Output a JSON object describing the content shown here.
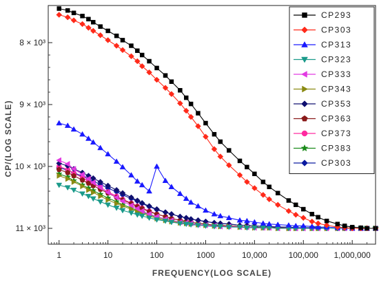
{
  "chart_data": {
    "type": "line",
    "xlabel": "FREQUENCY(LOG SCALE)",
    "ylabel": "CP/(LOG SCALE)",
    "x_scale": "log",
    "xlim": [
      0.6,
      3000000
    ],
    "y_ticks": [
      "8 × 10³",
      "9 × 10³",
      "10 × 10³",
      "11 × 10³"
    ],
    "x_ticks": [
      "1",
      "10",
      "100",
      "1000",
      "10,000",
      "100,000",
      "1,000,000"
    ],
    "legend_position": "top-right",
    "grid": false,
    "x": [
      1,
      1.5,
      2,
      3,
      4,
      5,
      7,
      10,
      15,
      20,
      30,
      40,
      50,
      70,
      100,
      150,
      200,
      300,
      400,
      500,
      700,
      1000,
      1500,
      2000,
      3000,
      5000,
      7000,
      10000,
      15000,
      20000,
      30000,
      50000,
      70000,
      100000,
      150000,
      200000,
      300000,
      500000,
      700000,
      1000000,
      1500000,
      2000000,
      3000000
    ],
    "series": [
      {
        "name": "CP293",
        "color": "#000000",
        "marker": "square",
        "values": [
          7.45,
          7.48,
          7.52,
          7.57,
          7.62,
          7.67,
          7.74,
          7.81,
          7.89,
          7.96,
          8.05,
          8.13,
          8.2,
          8.3,
          8.41,
          8.53,
          8.63,
          8.77,
          8.89,
          8.99,
          9.14,
          9.3,
          9.48,
          9.6,
          9.74,
          9.91,
          10.01,
          10.12,
          10.25,
          10.33,
          10.43,
          10.55,
          10.62,
          10.69,
          10.77,
          10.82,
          10.88,
          10.93,
          10.96,
          10.98,
          10.99,
          11.0,
          11.0
        ]
      },
      {
        "name": "CP303",
        "color": "#ff2a1a",
        "marker": "diamond",
        "values": [
          7.55,
          7.59,
          7.64,
          7.7,
          7.76,
          7.81,
          7.88,
          7.96,
          8.05,
          8.12,
          8.22,
          8.3,
          8.38,
          8.48,
          8.6,
          8.73,
          8.83,
          8.98,
          9.1,
          9.2,
          9.35,
          9.52,
          9.72,
          9.84,
          9.98,
          10.14,
          10.25,
          10.35,
          10.46,
          10.53,
          10.62,
          10.72,
          10.78,
          10.83,
          10.89,
          10.92,
          10.95,
          10.98,
          10.99,
          11.0,
          11.0,
          11.0,
          11.0
        ]
      },
      {
        "name": "CP313",
        "color": "#1a1aff",
        "marker": "triangle-up",
        "values": [
          9.3,
          9.34,
          9.4,
          9.48,
          9.55,
          9.61,
          9.7,
          9.8,
          9.92,
          10.01,
          10.14,
          10.24,
          10.3,
          10.4,
          10.0,
          10.23,
          10.33,
          10.44,
          10.52,
          10.58,
          10.64,
          10.71,
          10.77,
          10.8,
          10.83,
          10.87,
          10.88,
          10.9,
          10.92,
          10.93,
          10.94,
          10.95,
          10.96,
          10.96,
          10.97,
          10.98,
          10.98,
          10.99,
          10.99,
          11.0,
          11.0,
          11.0,
          11.0
        ]
      },
      {
        "name": "CP323",
        "color": "#1a9a8a",
        "marker": "triangle-down",
        "values": [
          10.3,
          10.34,
          10.38,
          10.44,
          10.48,
          10.52,
          10.57,
          10.62,
          10.67,
          10.71,
          10.75,
          10.78,
          10.8,
          10.83,
          10.86,
          10.88,
          10.9,
          10.92,
          10.93,
          10.94,
          10.95,
          10.96,
          10.97,
          10.97,
          10.98,
          10.98,
          10.99,
          10.99,
          10.99,
          10.99,
          11.0,
          11.0,
          11.0,
          11.0,
          11.0,
          11.0,
          11.0,
          11.0,
          11.0,
          11.0,
          11.0,
          11.0,
          11.0
        ]
      },
      {
        "name": "CP333",
        "color": "#e23ae2",
        "marker": "triangle-left",
        "values": [
          9.9,
          9.96,
          10.04,
          10.13,
          10.2,
          10.26,
          10.34,
          10.42,
          10.5,
          10.56,
          10.63,
          10.68,
          10.72,
          10.77,
          10.81,
          10.85,
          10.87,
          10.9,
          10.91,
          10.92,
          10.94,
          10.95,
          10.96,
          10.97,
          10.97,
          10.98,
          10.98,
          10.99,
          10.99,
          10.99,
          11.0,
          11.0,
          11.0,
          11.0,
          11.0,
          11.0,
          11.0,
          11.0,
          11.0,
          11.0,
          11.0,
          11.0,
          11.0
        ]
      },
      {
        "name": "CP343",
        "color": "#8a8a12",
        "marker": "triangle-right",
        "values": [
          10.15,
          10.2,
          10.25,
          10.32,
          10.38,
          10.42,
          10.48,
          10.54,
          10.6,
          10.64,
          10.69,
          10.73,
          10.76,
          10.8,
          10.84,
          10.87,
          10.89,
          10.91,
          10.92,
          10.93,
          10.94,
          10.95,
          10.96,
          10.97,
          10.97,
          10.98,
          10.98,
          10.99,
          10.99,
          10.99,
          11.0,
          11.0,
          11.0,
          11.0,
          11.0,
          11.0,
          11.0,
          11.0,
          11.0,
          11.0,
          11.0,
          11.0,
          11.0
        ]
      },
      {
        "name": "CP353",
        "color": "#101070",
        "marker": "diamond",
        "values": [
          9.95,
          9.99,
          10.04,
          10.1,
          10.15,
          10.19,
          10.25,
          10.31,
          10.38,
          10.43,
          10.5,
          10.55,
          10.59,
          10.64,
          10.69,
          10.74,
          10.77,
          10.81,
          10.83,
          10.85,
          10.87,
          10.89,
          10.91,
          10.92,
          10.93,
          10.95,
          10.95,
          10.96,
          10.97,
          10.97,
          10.98,
          10.98,
          10.99,
          10.99,
          10.99,
          10.99,
          11.0,
          11.0,
          11.0,
          11.0,
          11.0,
          11.0,
          11.0
        ]
      },
      {
        "name": "CP363",
        "color": "#8a1a1a",
        "marker": "pentagon",
        "values": [
          10.05,
          10.1,
          10.15,
          10.22,
          10.27,
          10.31,
          10.37,
          10.43,
          10.5,
          10.54,
          10.6,
          10.65,
          10.68,
          10.73,
          10.77,
          10.81,
          10.84,
          10.87,
          10.89,
          10.9,
          10.92,
          10.93,
          10.95,
          10.95,
          10.96,
          10.97,
          10.98,
          10.98,
          10.99,
          10.99,
          10.99,
          11.0,
          11.0,
          11.0,
          11.0,
          11.0,
          11.0,
          11.0,
          11.0,
          11.0,
          11.0,
          11.0,
          11.0
        ]
      },
      {
        "name": "CP373",
        "color": "#ff2aa0",
        "marker": "circle",
        "values": [
          10.0,
          10.05,
          10.11,
          10.18,
          10.24,
          10.28,
          10.34,
          10.41,
          10.48,
          10.53,
          10.59,
          10.64,
          10.67,
          10.72,
          10.77,
          10.81,
          10.84,
          10.87,
          10.89,
          10.9,
          10.92,
          10.93,
          10.95,
          10.95,
          10.96,
          10.97,
          10.98,
          10.98,
          10.99,
          10.99,
          10.99,
          11.0,
          11.0,
          11.0,
          11.0,
          11.0,
          11.0,
          11.0,
          11.0,
          11.0,
          11.0,
          11.0,
          11.0
        ]
      },
      {
        "name": "CP383",
        "color": "#1a8a1a",
        "marker": "star",
        "values": [
          10.12,
          10.17,
          10.23,
          10.3,
          10.35,
          10.39,
          10.45,
          10.51,
          10.57,
          10.62,
          10.67,
          10.71,
          10.74,
          10.78,
          10.82,
          10.85,
          10.87,
          10.9,
          10.91,
          10.92,
          10.94,
          10.95,
          10.96,
          10.97,
          10.97,
          10.98,
          10.98,
          10.99,
          10.99,
          10.99,
          11.0,
          11.0,
          11.0,
          11.0,
          11.0,
          11.0,
          11.0,
          11.0,
          11.0,
          11.0,
          11.0,
          11.0,
          11.0
        ]
      },
      {
        "name": "CP303",
        "color": "#0a1aa0",
        "marker": "diamond",
        "values": [
          10.02,
          10.06,
          10.1,
          10.16,
          10.2,
          10.24,
          10.29,
          10.35,
          10.41,
          10.46,
          10.52,
          10.56,
          10.6,
          10.65,
          10.7,
          10.74,
          10.77,
          10.81,
          10.83,
          10.85,
          10.87,
          10.89,
          10.91,
          10.92,
          10.93,
          10.95,
          10.95,
          10.96,
          10.97,
          10.97,
          10.98,
          10.98,
          10.99,
          10.99,
          10.99,
          10.99,
          11.0,
          11.0,
          11.0,
          11.0,
          11.0,
          11.0,
          11.0
        ]
      }
    ]
  }
}
